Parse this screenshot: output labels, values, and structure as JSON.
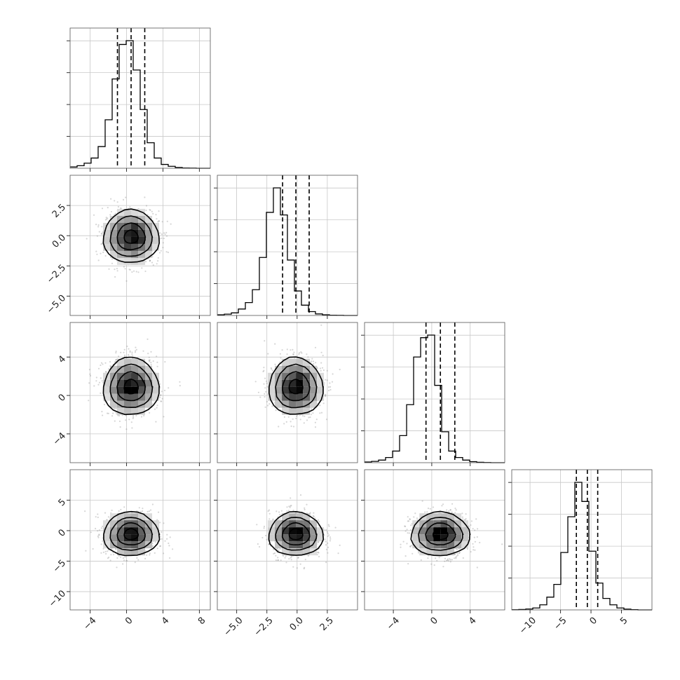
{
  "chart_data": {
    "type": "corner",
    "description_grid": true,
    "parameters": [
      {
        "axis_range": [
          -6.2,
          9.2
        ],
        "ticks": [
          -4,
          0,
          4,
          8
        ],
        "tick_labels": [
          "−4",
          "0",
          "4",
          "8"
        ],
        "quantiles": [
          -1.0,
          0.5,
          2.0
        ],
        "hist_bins": [
          -6.2,
          9.2
        ],
        "hist_values": [
          0.01,
          0.02,
          0.04,
          0.08,
          0.17,
          0.38,
          0.7,
          0.97,
          1.0,
          0.77,
          0.46,
          0.2,
          0.08,
          0.03,
          0.015,
          0.006,
          0.002,
          0.001,
          0,
          0
        ],
        "center": 0.5,
        "sigma": 1.5
      },
      {
        "axis_range": [
          -6.6,
          5.0
        ],
        "ticks": [
          -5.0,
          -2.5,
          0.0,
          2.5
        ],
        "tick_labels": [
          "−5.0",
          "−2.5",
          "0.0",
          "2.5"
        ],
        "quantiles": [
          -1.2,
          -0.1,
          1.0
        ],
        "hist_bins": [
          -6.6,
          5.0
        ],
        "hist_values": [
          0.005,
          0.01,
          0.02,
          0.05,
          0.1,
          0.2,
          0.45,
          0.8,
          0.99,
          0.78,
          0.43,
          0.19,
          0.08,
          0.03,
          0.012,
          0.005,
          0.002,
          0.001,
          0,
          0
        ],
        "center": -0.1,
        "sigma": 1.1
      },
      {
        "axis_range": [
          -7.0,
          7.6
        ],
        "ticks": [
          -4,
          0,
          4
        ],
        "tick_labels": [
          "−4",
          "0",
          "4"
        ],
        "quantiles": [
          -0.6,
          0.9,
          2.4
        ],
        "hist_bins": [
          -7.0,
          7.6
        ],
        "hist_values": [
          0.005,
          0.01,
          0.02,
          0.04,
          0.09,
          0.21,
          0.45,
          0.82,
          0.97,
          0.99,
          0.6,
          0.24,
          0.09,
          0.04,
          0.02,
          0.008,
          0.003,
          0.001,
          0,
          0
        ],
        "center": 0.9,
        "sigma": 1.5
      },
      {
        "axis_range": [
          -13.0,
          10.0
        ],
        "ticks": [
          -10,
          -5,
          0,
          5
        ],
        "tick_labels": [
          "−10",
          "−5",
          "0",
          "5"
        ],
        "quantiles": [
          -2.4,
          -0.6,
          1.1
        ],
        "hist_bins": [
          -13.0,
          10.0
        ],
        "hist_values": [
          0.001,
          0.003,
          0.007,
          0.015,
          0.04,
          0.1,
          0.2,
          0.45,
          0.73,
          1.0,
          0.85,
          0.46,
          0.21,
          0.09,
          0.04,
          0.015,
          0.006,
          0.002,
          0,
          0
        ],
        "center": -0.6,
        "sigma": 1.8
      }
    ],
    "contour_levels_sigma": [
      0.5,
      1.0,
      1.5,
      2.0
    ]
  }
}
